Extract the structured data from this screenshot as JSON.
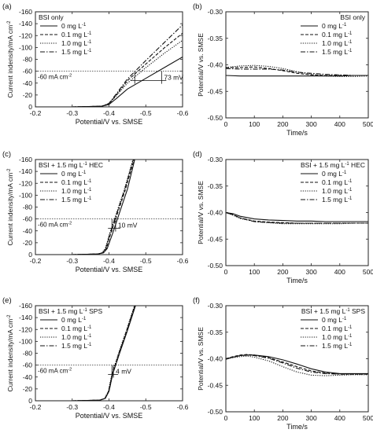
{
  "chart_data": [
    {
      "id": "a",
      "type": "line",
      "panel_label": "(a)",
      "legend_title": "BSI only",
      "xlabel": "Potential/V vs. SMSE",
      "ylabel": "Current indensity/mA cm",
      "ylabel_sup": "-2",
      "xlim": [
        -0.2,
        -0.6
      ],
      "ylim": [
        0,
        -160
      ],
      "xticks": [
        -0.2,
        -0.3,
        -0.4,
        -0.5,
        -0.6
      ],
      "xtick_labels": [
        "-0.2",
        "-0.3",
        "-0.4",
        "-0.5",
        "-0.6"
      ],
      "yticks": [
        0,
        -20,
        -40,
        -60,
        -80,
        -100,
        -120,
        -140,
        -160
      ],
      "ytick_labels": [
        "0",
        "-20",
        "-40",
        "-60",
        "-80",
        "-100",
        "-120",
        "-140",
        "-160"
      ],
      "refline": {
        "y": -60,
        "label": "-60 mA cm",
        "label_sup": "-2"
      },
      "annotation": {
        "text": "73 mV",
        "x1": -0.47,
        "x2": -0.543,
        "y": -60
      },
      "series": [
        {
          "name": "0 mg L",
          "dash": "solid",
          "x": [
            -0.2,
            -0.3,
            -0.38,
            -0.4,
            -0.42,
            -0.45,
            -0.5,
            -0.55,
            -0.6
          ],
          "y": [
            0,
            0,
            -1,
            -4,
            -14,
            -30,
            -48,
            -66,
            -84
          ]
        },
        {
          "name": "0.1 mg L",
          "dash": "dash",
          "x": [
            -0.2,
            -0.3,
            -0.38,
            -0.4,
            -0.42,
            -0.45,
            -0.5,
            -0.55,
            -0.6
          ],
          "y": [
            0,
            0,
            -1,
            -5,
            -20,
            -44,
            -72,
            -99,
            -124
          ]
        },
        {
          "name": "1.0 mg L",
          "dash": "dot",
          "x": [
            -0.2,
            -0.3,
            -0.38,
            -0.4,
            -0.42,
            -0.45,
            -0.5,
            -0.55,
            -0.6
          ],
          "y": [
            0,
            0,
            -1,
            -5,
            -19,
            -40,
            -66,
            -90,
            -112
          ]
        },
        {
          "name": "1.5 mg L",
          "dash": "dashdot",
          "x": [
            -0.2,
            -0.3,
            -0.38,
            -0.4,
            -0.42,
            -0.45,
            -0.5,
            -0.55,
            -0.6
          ],
          "y": [
            0,
            0,
            -1,
            -6,
            -22,
            -47,
            -78,
            -108,
            -138
          ]
        }
      ]
    },
    {
      "id": "b",
      "type": "line",
      "panel_label": "(b)",
      "legend_title": "BSI only",
      "xlabel": "Time/s",
      "ylabel": "Potential/V vs. SMSE",
      "xlim": [
        0,
        500
      ],
      "ylim": [
        -0.5,
        -0.3
      ],
      "xticks": [
        0,
        100,
        200,
        300,
        400,
        500
      ],
      "xtick_labels": [
        "0",
        "100",
        "200",
        "300",
        "400",
        "500"
      ],
      "yticks": [
        -0.3,
        -0.35,
        -0.4,
        -0.45,
        -0.5
      ],
      "ytick_labels": [
        "-0.30",
        "-0.35",
        "-0.40",
        "-0.45",
        "-0.50"
      ],
      "series": [
        {
          "name": "0 mg L",
          "dash": "solid",
          "x": [
            0,
            50,
            100,
            150,
            200,
            250,
            300,
            350,
            400,
            450,
            500
          ],
          "y": [
            -0.42,
            -0.421,
            -0.421,
            -0.421,
            -0.421,
            -0.421,
            -0.421,
            -0.421,
            -0.421,
            -0.42,
            -0.42
          ]
        },
        {
          "name": "0.1 mg L",
          "dash": "dash",
          "x": [
            0,
            50,
            100,
            150,
            200,
            250,
            300,
            350,
            400,
            450,
            500
          ],
          "y": [
            -0.405,
            -0.405,
            -0.404,
            -0.407,
            -0.411,
            -0.416,
            -0.419,
            -0.42,
            -0.42,
            -0.42,
            -0.42
          ]
        },
        {
          "name": "1.0 mg L",
          "dash": "dot",
          "x": [
            0,
            50,
            100,
            150,
            200,
            250,
            300,
            350,
            400,
            450,
            500
          ],
          "y": [
            -0.405,
            -0.402,
            -0.401,
            -0.403,
            -0.407,
            -0.413,
            -0.418,
            -0.421,
            -0.422,
            -0.422,
            -0.421
          ]
        },
        {
          "name": "1.5 mg L",
          "dash": "dashdot",
          "x": [
            0,
            50,
            100,
            150,
            200,
            250,
            300,
            350,
            400,
            450,
            500
          ],
          "y": [
            -0.407,
            -0.408,
            -0.408,
            -0.408,
            -0.41,
            -0.414,
            -0.416,
            -0.418,
            -0.419,
            -0.42,
            -0.42
          ]
        }
      ]
    },
    {
      "id": "c",
      "type": "line",
      "panel_label": "(c)",
      "legend_title": "BSI + 1.5 mg L",
      "legend_title_sup": "-1",
      "legend_title_suffix": " HEC",
      "xlabel": "Potential/V vs. SMSE",
      "ylabel": "Current indensity/mA cm",
      "ylabel_sup": "-2",
      "xlim": [
        -0.2,
        -0.6
      ],
      "ylim": [
        0,
        -160
      ],
      "xticks": [
        -0.2,
        -0.3,
        -0.4,
        -0.5,
        -0.6
      ],
      "xtick_labels": [
        "-0.2",
        "-0.3",
        "-0.4",
        "-0.5",
        "-0.6"
      ],
      "yticks": [
        0,
        -20,
        -40,
        -60,
        -80,
        -100,
        -120,
        -140,
        -160
      ],
      "ytick_labels": [
        "0",
        "-20",
        "-40",
        "-60",
        "-80",
        "-100",
        "-120",
        "-140",
        "-160"
      ],
      "refline": {
        "y": -60,
        "label": "-60 mA cm",
        "label_sup": "-2"
      },
      "annotation": {
        "text": "10 mV",
        "x1": -0.408,
        "x2": -0.418,
        "y": -60
      },
      "series": [
        {
          "name": "0 mg L",
          "dash": "solid",
          "x": [
            -0.2,
            -0.3,
            -0.37,
            -0.385,
            -0.395,
            -0.41,
            -0.43,
            -0.45,
            -0.47
          ],
          "y": [
            0,
            0,
            -1,
            -3,
            -10,
            -36,
            -73,
            -110,
            -160
          ]
        },
        {
          "name": "0.1 mg L",
          "dash": "dash",
          "x": [
            -0.2,
            -0.3,
            -0.37,
            -0.383,
            -0.393,
            -0.405,
            -0.425,
            -0.445,
            -0.468
          ],
          "y": [
            0,
            0,
            -1,
            -3,
            -10,
            -36,
            -73,
            -110,
            -160
          ]
        },
        {
          "name": "1.0 mg L",
          "dash": "dot",
          "x": [
            -0.2,
            -0.3,
            -0.37,
            -0.381,
            -0.39,
            -0.402,
            -0.422,
            -0.442,
            -0.465
          ],
          "y": [
            0,
            0,
            -1,
            -3,
            -10,
            -36,
            -73,
            -110,
            -160
          ]
        },
        {
          "name": "1.5 mg L",
          "dash": "dashdot",
          "x": [
            -0.2,
            -0.3,
            -0.37,
            -0.382,
            -0.391,
            -0.403,
            -0.423,
            -0.443,
            -0.466
          ],
          "y": [
            0,
            0,
            -1,
            -3,
            -10,
            -36,
            -73,
            -110,
            -160
          ]
        }
      ]
    },
    {
      "id": "d",
      "type": "line",
      "panel_label": "(d)",
      "legend_title": "BSI + 1.5 mg L",
      "legend_title_sup": "-1",
      "legend_title_suffix": " HEC",
      "xlabel": "Time/s",
      "ylabel": "Potential/V vs. SMSE",
      "xlim": [
        0,
        500
      ],
      "ylim": [
        -0.5,
        -0.3
      ],
      "xticks": [
        0,
        100,
        200,
        300,
        400,
        500
      ],
      "xtick_labels": [
        "0",
        "100",
        "200",
        "300",
        "400",
        "500"
      ],
      "yticks": [
        -0.3,
        -0.35,
        -0.4,
        -0.45,
        -0.5
      ],
      "ytick_labels": [
        "-0.30",
        "-0.35",
        "-0.40",
        "-0.45",
        "-0.50"
      ],
      "series": [
        {
          "name": "0 mg L",
          "dash": "solid",
          "x": [
            0,
            25,
            50,
            100,
            150,
            200,
            250,
            300,
            350,
            400,
            450,
            500
          ],
          "y": [
            -0.4,
            -0.402,
            -0.407,
            -0.412,
            -0.414,
            -0.415,
            -0.416,
            -0.416,
            -0.417,
            -0.417,
            -0.417,
            -0.417
          ]
        },
        {
          "name": "0.1 mg L",
          "dash": "dash",
          "x": [
            0,
            25,
            50,
            100,
            150,
            200,
            250,
            300,
            350,
            400,
            450,
            500
          ],
          "y": [
            -0.4,
            -0.404,
            -0.41,
            -0.416,
            -0.418,
            -0.419,
            -0.42,
            -0.42,
            -0.42,
            -0.42,
            -0.42,
            -0.42
          ]
        },
        {
          "name": "1.0 mg L",
          "dash": "dot",
          "x": [
            0,
            25,
            50,
            100,
            150,
            200,
            250,
            300,
            350,
            400,
            450,
            500
          ],
          "y": [
            -0.4,
            -0.405,
            -0.411,
            -0.417,
            -0.419,
            -0.421,
            -0.421,
            -0.421,
            -0.421,
            -0.421,
            -0.42,
            -0.42
          ]
        },
        {
          "name": "1.5 mg L",
          "dash": "dashdot",
          "x": [
            0,
            25,
            50,
            100,
            150,
            200,
            250,
            300,
            350,
            400,
            450,
            500
          ],
          "y": [
            -0.4,
            -0.404,
            -0.41,
            -0.417,
            -0.419,
            -0.42,
            -0.42,
            -0.42,
            -0.42,
            -0.42,
            -0.42,
            -0.42
          ]
        }
      ]
    },
    {
      "id": "e",
      "type": "line",
      "panel_label": "(e)",
      "legend_title": "BSI + 1.5 mg L",
      "legend_title_sup": "-1",
      "legend_title_suffix": " SPS",
      "xlabel": "Potential/V vs. SMSE",
      "ylabel": "Current indensity/mA cm",
      "ylabel_sup": "-2",
      "xlim": [
        -0.2,
        -0.6
      ],
      "ylim": [
        0,
        -160
      ],
      "xticks": [
        -0.2,
        -0.3,
        -0.4,
        -0.5,
        -0.6
      ],
      "xtick_labels": [
        "-0.2",
        "-0.3",
        "-0.4",
        "-0.5",
        "-0.6"
      ],
      "yticks": [
        0,
        -20,
        -40,
        -60,
        -80,
        -100,
        -120,
        -140,
        -160
      ],
      "ytick_labels": [
        "0",
        "-20",
        "-40",
        "-60",
        "-80",
        "-100",
        "-120",
        "-140",
        "-160"
      ],
      "refline": {
        "y": -60,
        "label": "-60 mA cm",
        "label_sup": "-2"
      },
      "annotation": {
        "text": "4 mV",
        "x1": -0.408,
        "x2": -0.412,
        "y": -60
      },
      "series": [
        {
          "name": "0 mg L",
          "dash": "solid",
          "x": [
            -0.2,
            -0.3,
            -0.375,
            -0.39,
            -0.4,
            -0.41,
            -0.43,
            -0.45,
            -0.472
          ],
          "y": [
            0,
            0,
            -1,
            -4,
            -16,
            -45,
            -82,
            -118,
            -160
          ]
        },
        {
          "name": "0.1 mg L",
          "dash": "dash",
          "x": [
            -0.2,
            -0.3,
            -0.375,
            -0.389,
            -0.399,
            -0.409,
            -0.428,
            -0.448,
            -0.47
          ],
          "y": [
            0,
            0,
            -1,
            -4,
            -16,
            -45,
            -82,
            -118,
            -160
          ]
        },
        {
          "name": "1.0 mg L",
          "dash": "dot",
          "x": [
            -0.2,
            -0.3,
            -0.375,
            -0.388,
            -0.398,
            -0.408,
            -0.427,
            -0.447,
            -0.469
          ],
          "y": [
            0,
            0,
            -1,
            -4,
            -16,
            -45,
            -82,
            -118,
            -160
          ]
        },
        {
          "name": "1.5 mg L",
          "dash": "dashdot",
          "x": [
            -0.2,
            -0.3,
            -0.375,
            -0.389,
            -0.4,
            -0.41,
            -0.429,
            -0.449,
            -0.471
          ],
          "y": [
            0,
            0,
            -1,
            -4,
            -16,
            -45,
            -82,
            -118,
            -160
          ]
        }
      ]
    },
    {
      "id": "f",
      "type": "line",
      "panel_label": "(f)",
      "legend_title": "BSI + 1.5 mg L",
      "legend_title_sup": "-1",
      "legend_title_suffix": " SPS",
      "xlabel": "Time/s",
      "ylabel": "Potential/V vs. SMSE",
      "xlim": [
        0,
        500
      ],
      "ylim": [
        -0.5,
        -0.3
      ],
      "xticks": [
        0,
        100,
        200,
        300,
        400,
        500
      ],
      "xtick_labels": [
        "0",
        "100",
        "200",
        "300",
        "400",
        "500"
      ],
      "yticks": [
        -0.3,
        -0.35,
        -0.4,
        -0.45,
        -0.5
      ],
      "ytick_labels": [
        "-0.30",
        "-0.35",
        "-0.40",
        "-0.45",
        "-0.50"
      ],
      "series": [
        {
          "name": "0 mg L",
          "dash": "solid",
          "x": [
            0,
            25,
            50,
            75,
            100,
            150,
            200,
            250,
            300,
            350,
            400,
            450,
            500
          ],
          "y": [
            -0.4,
            -0.397,
            -0.394,
            -0.393,
            -0.393,
            -0.396,
            -0.402,
            -0.41,
            -0.419,
            -0.425,
            -0.428,
            -0.428,
            -0.428
          ]
        },
        {
          "name": "0.1 mg L",
          "dash": "dash",
          "x": [
            0,
            25,
            50,
            75,
            100,
            150,
            200,
            250,
            300,
            350,
            400,
            450,
            500
          ],
          "y": [
            -0.4,
            -0.396,
            -0.393,
            -0.392,
            -0.393,
            -0.398,
            -0.406,
            -0.415,
            -0.423,
            -0.427,
            -0.429,
            -0.429,
            -0.429
          ]
        },
        {
          "name": "1.0 mg L",
          "dash": "dot",
          "x": [
            0,
            25,
            50,
            75,
            100,
            150,
            200,
            250,
            300,
            350,
            400,
            450,
            500
          ],
          "y": [
            -0.4,
            -0.398,
            -0.396,
            -0.395,
            -0.397,
            -0.404,
            -0.415,
            -0.425,
            -0.431,
            -0.432,
            -0.431,
            -0.43,
            -0.43
          ]
        },
        {
          "name": "1.5 mg L",
          "dash": "dashdot",
          "x": [
            0,
            25,
            50,
            75,
            100,
            150,
            200,
            250,
            300,
            350,
            400,
            450,
            500
          ],
          "y": [
            -0.401,
            -0.397,
            -0.394,
            -0.393,
            -0.394,
            -0.399,
            -0.408,
            -0.418,
            -0.425,
            -0.428,
            -0.429,
            -0.429,
            -0.429
          ]
        }
      ]
    }
  ],
  "legend_sup": "-1"
}
